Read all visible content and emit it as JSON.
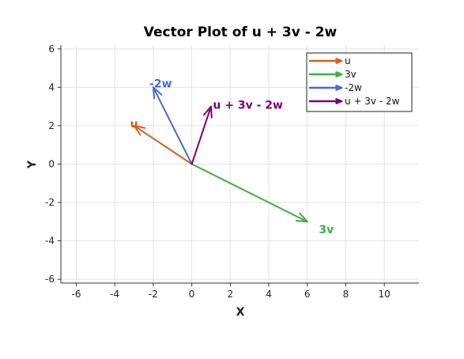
{
  "chart_data": {
    "type": "vector",
    "title": "Vector Plot of u + 3v - 2w",
    "xlabel": "X",
    "ylabel": "Y",
    "xlim": [
      -6.8,
      11.8
    ],
    "ylim": [
      -6.2,
      6.2
    ],
    "xticks": [
      -6,
      -4,
      -2,
      0,
      2,
      4,
      6,
      8,
      10
    ],
    "yticks": [
      -6,
      -4,
      -2,
      0,
      2,
      4,
      6
    ],
    "grid": true,
    "legend_position": "top-right",
    "vectors": [
      {
        "name": "u",
        "label": "u",
        "start": [
          0,
          0
        ],
        "end": [
          -3,
          2
        ],
        "label_pos": [
          -3.2,
          2.1
        ],
        "color": "#d95f1a"
      },
      {
        "name": "3v",
        "label": "3v",
        "start": [
          0,
          0
        ],
        "end": [
          6,
          -3
        ],
        "label_pos": [
          6.6,
          -3.4
        ],
        "color": "#3cb043"
      },
      {
        "name": "-2w",
        "label": "-2w",
        "start": [
          0,
          0
        ],
        "end": [
          -2,
          4
        ],
        "label_pos": [
          -2.2,
          4.2
        ],
        "color": "#4a67e0"
      },
      {
        "name": "u + 3v - 2w",
        "label": "u + 3v - 2w",
        "start": [
          0,
          0
        ],
        "end": [
          1,
          3
        ],
        "label_pos": [
          1.1,
          3.1
        ],
        "color": "#7a007a"
      }
    ]
  }
}
